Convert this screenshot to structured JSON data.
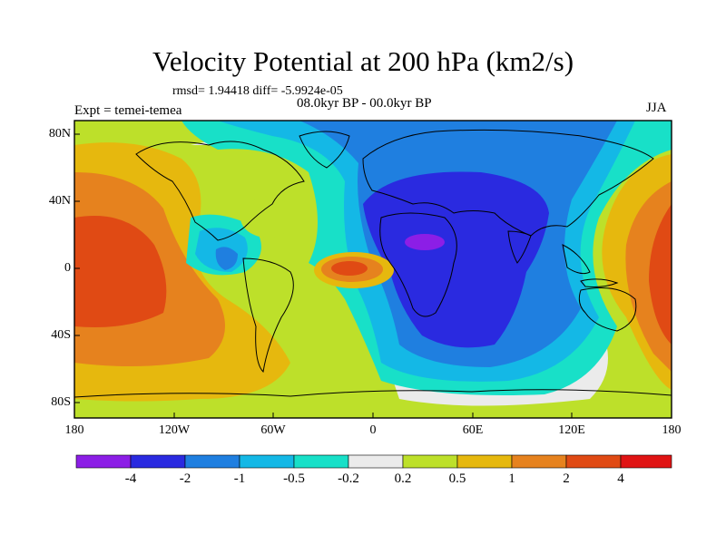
{
  "header": {
    "title": "Velocity Potential at 200 hPa (km2/s)",
    "stats": "rmsd= 1.94418 diff= -5.9924e-05",
    "period": "08.0kyr BP - 00.0kyr BP",
    "experiment": "Expt = temei-temea",
    "season": "JJA"
  },
  "map": {
    "lat_labels": [
      "80N",
      "40N",
      "0",
      "40S",
      "80S"
    ],
    "lon_labels": [
      "180",
      "120W",
      "60W",
      "0",
      "60E",
      "120E",
      "180"
    ]
  },
  "colorbar": {
    "labels": [
      "-4",
      "-2",
      "-1",
      "-0.5",
      "-0.2",
      "0.2",
      "0.5",
      "1",
      "2",
      "4"
    ],
    "colors": [
      "#8c1ee6",
      "#2a2ae0",
      "#1f7fe0",
      "#14b8e6",
      "#18e0c8",
      "#ebebeb",
      "#bde02a",
      "#e6b80e",
      "#e6821e",
      "#e04a14",
      "#e01414"
    ]
  }
}
